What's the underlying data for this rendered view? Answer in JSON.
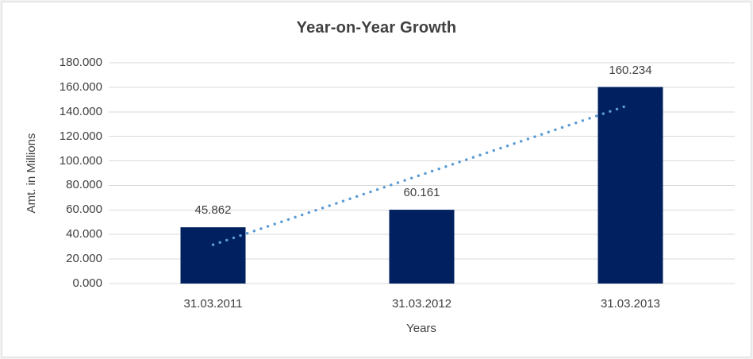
{
  "chart_data": {
    "type": "bar",
    "title": "Year-on-Year Growth",
    "xlabel": "Years",
    "ylabel": "Amt. in Millions",
    "categories": [
      "31.03.2011",
      "31.03.2012",
      "31.03.2013"
    ],
    "values": [
      45.862,
      60.161,
      160.234
    ],
    "data_labels": [
      "45.862",
      "60.161",
      "160.234"
    ],
    "ylim": [
      0,
      180
    ],
    "ytick_step": 20,
    "ytick_labels": [
      "0.000",
      "20.000",
      "40.000",
      "60.000",
      "80.000",
      "100.000",
      "120.000",
      "140.000",
      "160.000",
      "180.000"
    ],
    "grid": true,
    "legend": "none",
    "trendline": {
      "type": "linear",
      "style": "dotted",
      "value_start": 31.6,
      "value_end": 145.9,
      "start_category_index": 0,
      "end_category_index": 2
    },
    "colors": {
      "bar": "#002060",
      "trendline": "#5b9bd5",
      "gridline": "#d9d9d9",
      "axis_line": "#d9d9d9",
      "text": "#404040",
      "title_text": "#404040",
      "chart_border": "#d9d9d9",
      "background": "#ffffff"
    }
  }
}
